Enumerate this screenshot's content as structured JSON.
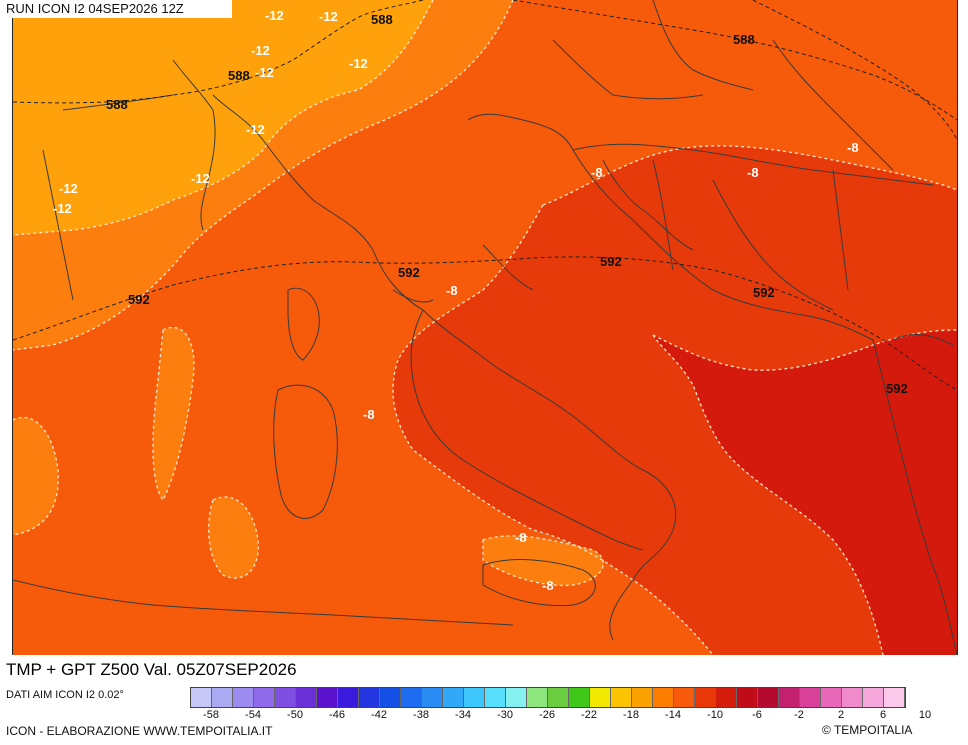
{
  "header": {
    "run_title": "RUN ICON I2 04SEP2026 12Z"
  },
  "map": {
    "title": "TMP + GPT Z500 Val. 05Z07SEP2026",
    "colors": {
      "temp_m12": "#fea10b",
      "temp_m10": "#fb7e0e",
      "temp_m8": "#f65a0b",
      "temp_m6": "#e73a0a",
      "temp_m4": "#d41a0c",
      "isotherm": "#ffe6c8",
      "geopotential": "#222222",
      "border": "#3a3a3a"
    },
    "geopotential_labels": [
      "588",
      "588",
      "588",
      "588",
      "592",
      "592",
      "592",
      "592",
      "592"
    ],
    "temperature_labels": [
      "-12",
      "-12",
      "-12",
      "-12",
      "-12",
      "-12",
      "-12",
      "-12",
      "-12",
      "-8",
      "-8",
      "-8",
      "-8",
      "-8",
      "-8",
      "-8"
    ]
  },
  "legend": {
    "data_source": "DATI AIM ICON I2 0.02°",
    "scale_colors": [
      "#c8c8f8",
      "#aaaaf2",
      "#9c8cf0",
      "#8f6ae8",
      "#7e4fe0",
      "#6a2fd6",
      "#5a12cc",
      "#3a1adc",
      "#2436e0",
      "#1450e6",
      "#1e6cf0",
      "#2a8cf4",
      "#32a8f8",
      "#3cc6fc",
      "#56e0fc",
      "#86f0f0",
      "#8ee67e",
      "#6acc3e",
      "#40c818",
      "#f0e800",
      "#fcc400",
      "#fca200",
      "#fc7c00",
      "#f65a0a",
      "#e8380a",
      "#d41c0c",
      "#c00c18",
      "#b40a30",
      "#c42070",
      "#d8409a",
      "#e866b8",
      "#f08acb",
      "#f6a8dc",
      "#fbc8ec"
    ],
    "tick_labels": [
      "-58",
      "-54",
      "-50",
      "-46",
      "-42",
      "-38",
      "-34",
      "-30",
      "-26",
      "-22",
      "-18",
      "-14",
      "-10",
      "-6",
      "-2",
      "2",
      "6",
      "10"
    ]
  },
  "footer": {
    "left": "ICON - ELABORAZIONE WWW.TEMPOITALIA.IT",
    "right": "© TEMPOITALIA"
  }
}
